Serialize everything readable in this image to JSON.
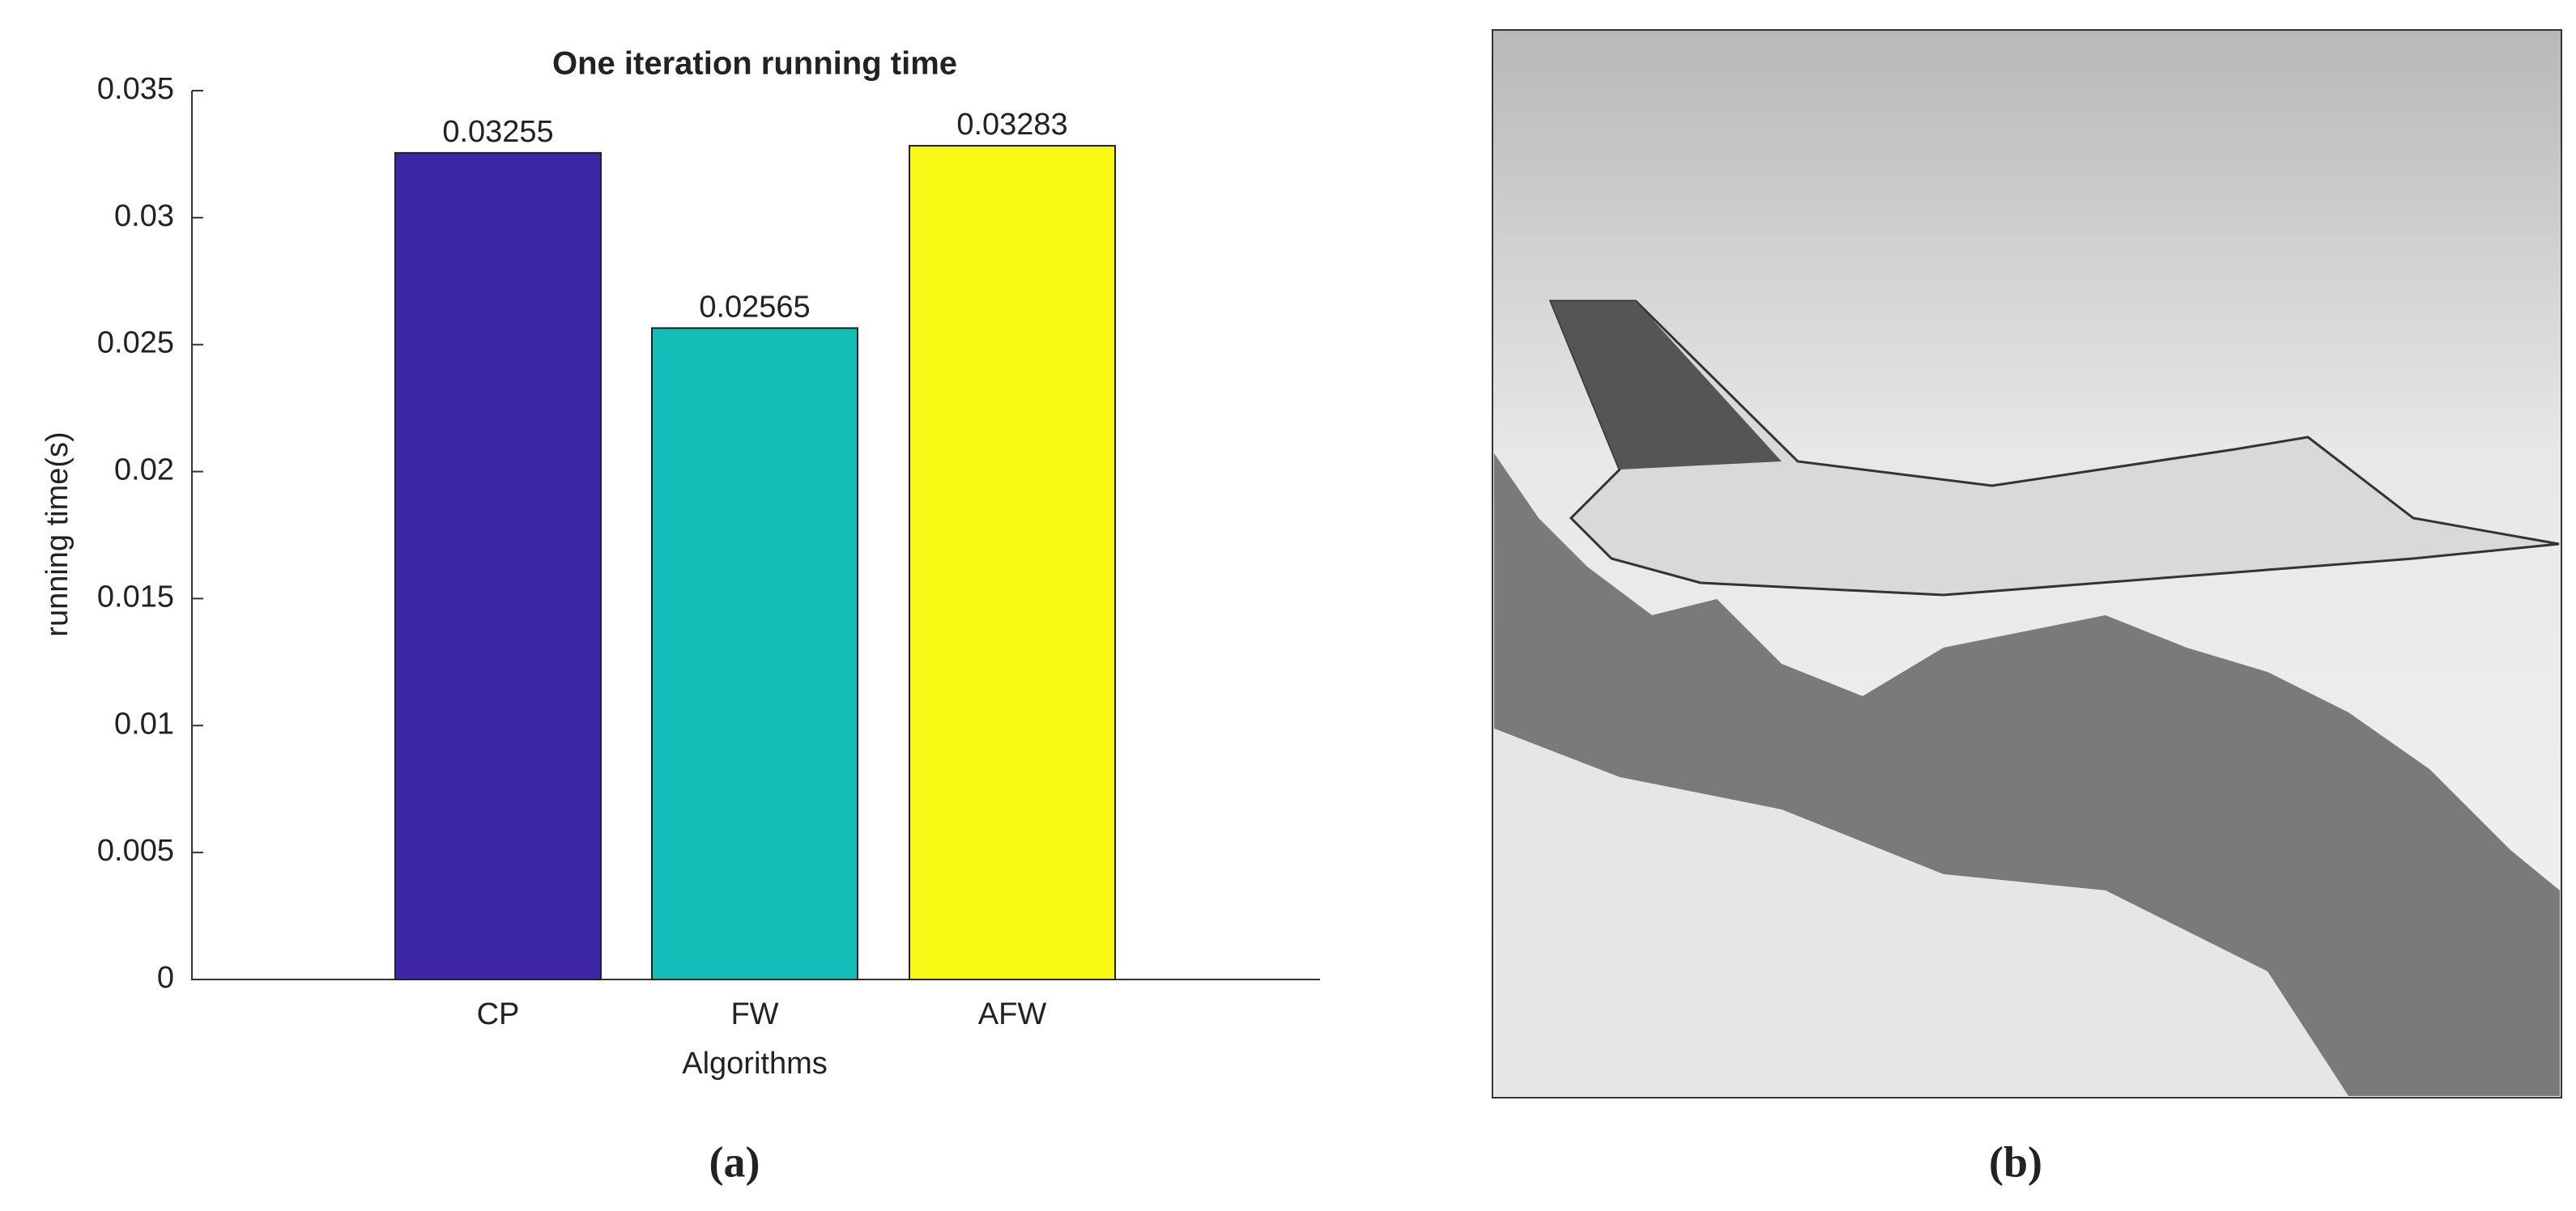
{
  "chart_data": {
    "type": "bar",
    "title": "One iteration running time",
    "x_label": "Algorithms",
    "y_label": "running time(s)",
    "categories": [
      "CP",
      "FW",
      "AFW"
    ],
    "values": [
      0.03255,
      0.02565,
      0.03283
    ],
    "colors": [
      "#3e26a8",
      "#13bdb8",
      "#f8f914"
    ],
    "ylim": [
      0,
      0.035
    ],
    "yticks": [
      0,
      0.005,
      0.01,
      0.015,
      0.02,
      0.025,
      0.03,
      0.035
    ],
    "grid": false
  },
  "captions": [
    "(a)",
    "(b)"
  ]
}
